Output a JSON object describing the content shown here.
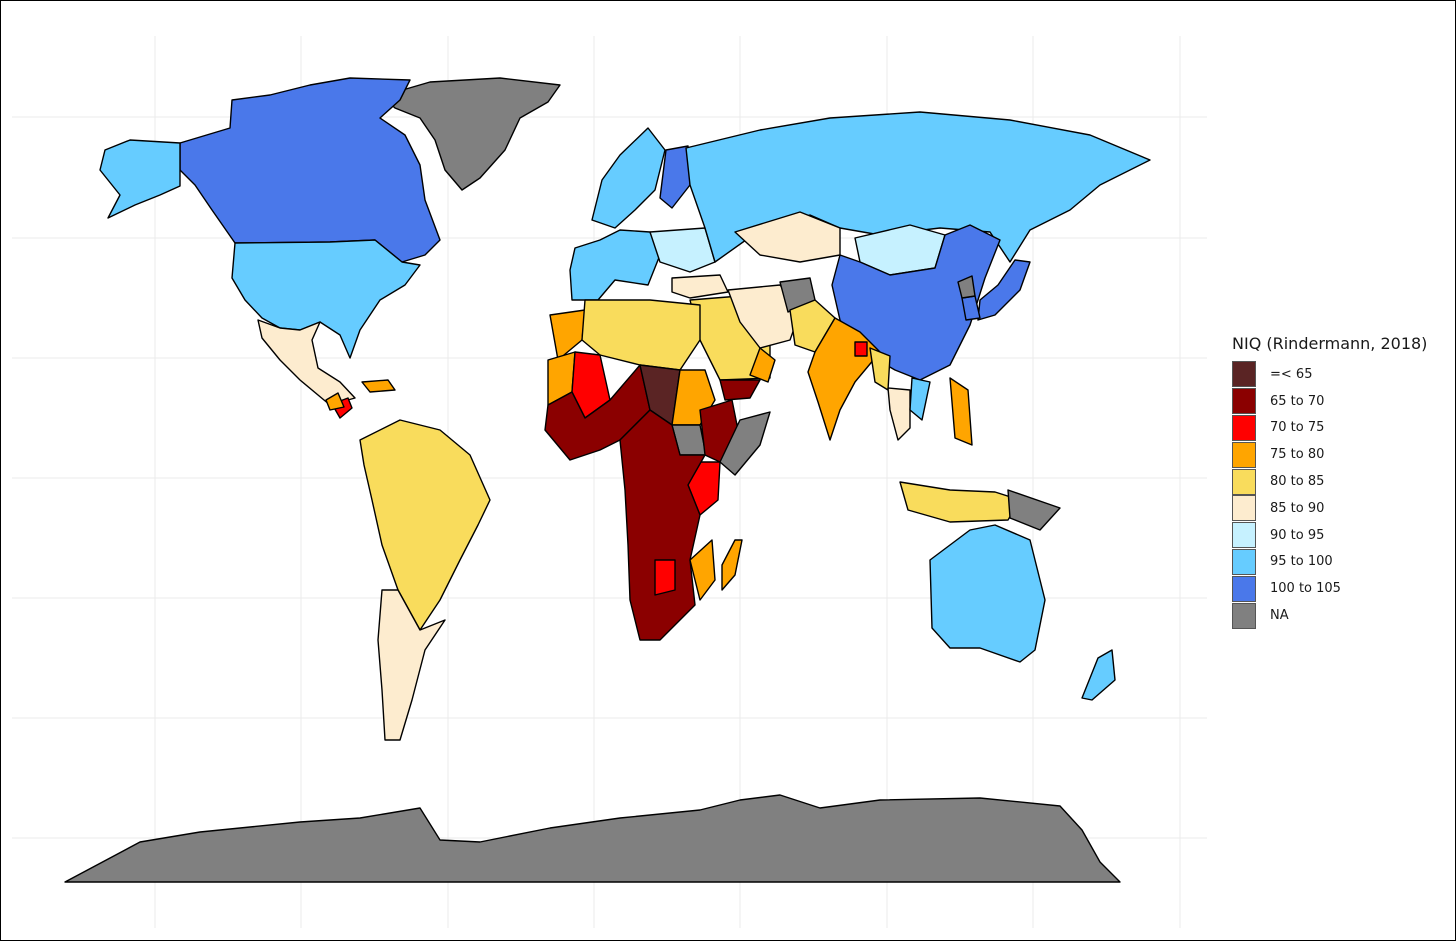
{
  "legend": {
    "title": "NIQ (Rindermann, 2018)",
    "items": [
      {
        "key": "lt65",
        "label": "=< 65",
        "color": "#5a2424"
      },
      {
        "key": "65_70",
        "label": "65 to 70",
        "color": "#8b0000"
      },
      {
        "key": "70_75",
        "label": "70 to 75",
        "color": "#ff0000"
      },
      {
        "key": "75_80",
        "label": "75 to 80",
        "color": "#ffa500"
      },
      {
        "key": "80_85",
        "label": "80 to 85",
        "color": "#f9dc5c"
      },
      {
        "key": "85_90",
        "label": "85 to 90",
        "color": "#fdeccf"
      },
      {
        "key": "90_95",
        "label": "90 to 95",
        "color": "#c6f1ff"
      },
      {
        "key": "95_100",
        "label": "95 to 100",
        "color": "#66ccff"
      },
      {
        "key": "100_105",
        "label": "100 to 105",
        "color": "#4a78ea"
      },
      {
        "key": "na",
        "label": "NA",
        "color": "#808080"
      }
    ]
  },
  "map_data": {
    "type": "choropleth",
    "variable": "NIQ",
    "regions": [
      {
        "name": "Greenland",
        "bin": "na"
      },
      {
        "name": "Canada",
        "bin": "100_105"
      },
      {
        "name": "Alaska",
        "bin": "95_100"
      },
      {
        "name": "United States",
        "bin": "95_100"
      },
      {
        "name": "Mexico",
        "bin": "85_90"
      },
      {
        "name": "Honduras",
        "bin": "70_75"
      },
      {
        "name": "Guatemala",
        "bin": "75_80"
      },
      {
        "name": "Cuba",
        "bin": "75_80"
      },
      {
        "name": "Guyana",
        "bin": "75_80"
      },
      {
        "name": "South America (north/central)",
        "bin": "80_85"
      },
      {
        "name": "Argentina",
        "bin": "85_90"
      },
      {
        "name": "Chile",
        "bin": "85_90"
      },
      {
        "name": "Uruguay",
        "bin": "85_90"
      },
      {
        "name": "Scandinavia",
        "bin": "95_100"
      },
      {
        "name": "Finland",
        "bin": "100_105"
      },
      {
        "name": "Western Europe",
        "bin": "95_100"
      },
      {
        "name": "Eastern Europe",
        "bin": "90_95"
      },
      {
        "name": "Russia",
        "bin": "95_100"
      },
      {
        "name": "Kazakhstan",
        "bin": "85_90"
      },
      {
        "name": "Mongolia",
        "bin": "90_95"
      },
      {
        "name": "China",
        "bin": "100_105"
      },
      {
        "name": "Japan",
        "bin": "100_105"
      },
      {
        "name": "Korea",
        "bin": "100_105"
      },
      {
        "name": "North Korea",
        "bin": "na"
      },
      {
        "name": "Turkey",
        "bin": "85_90"
      },
      {
        "name": "Middle East",
        "bin": "80_85"
      },
      {
        "name": "Iran",
        "bin": "85_90"
      },
      {
        "name": "Afghanistan",
        "bin": "na"
      },
      {
        "name": "Pakistan",
        "bin": "80_85"
      },
      {
        "name": "India",
        "bin": "75_80"
      },
      {
        "name": "Bangladesh",
        "bin": "70_75"
      },
      {
        "name": "Myanmar",
        "bin": "80_85"
      },
      {
        "name": "Thailand",
        "bin": "85_90"
      },
      {
        "name": "Vietnam",
        "bin": "95_100"
      },
      {
        "name": "Philippines",
        "bin": "75_80"
      },
      {
        "name": "Indonesia",
        "bin": "80_85"
      },
      {
        "name": "Papua New Guinea",
        "bin": "na"
      },
      {
        "name": "Australia",
        "bin": "95_100"
      },
      {
        "name": "New Zealand",
        "bin": "95_100"
      },
      {
        "name": "Morocco",
        "bin": "75_80"
      },
      {
        "name": "North Africa",
        "bin": "80_85"
      },
      {
        "name": "Mauritania",
        "bin": "75_80"
      },
      {
        "name": "Mali",
        "bin": "70_75"
      },
      {
        "name": "West Africa",
        "bin": "65_70"
      },
      {
        "name": "Chad",
        "bin": "lt65"
      },
      {
        "name": "Sudan",
        "bin": "75_80"
      },
      {
        "name": "South Sudan",
        "bin": "na"
      },
      {
        "name": "Ethiopia",
        "bin": "65_70"
      },
      {
        "name": "Somalia",
        "bin": "na"
      },
      {
        "name": "Yemen",
        "bin": "65_70"
      },
      {
        "name": "Oman",
        "bin": "75_80"
      },
      {
        "name": "Kenya",
        "bin": "70_75"
      },
      {
        "name": "Central and Southern Africa",
        "bin": "65_70"
      },
      {
        "name": "Zambia",
        "bin": "70_75"
      },
      {
        "name": "Mozambique",
        "bin": "75_80"
      },
      {
        "name": "Madagascar",
        "bin": "75_80"
      },
      {
        "name": "Antarctica",
        "bin": "na"
      }
    ]
  }
}
